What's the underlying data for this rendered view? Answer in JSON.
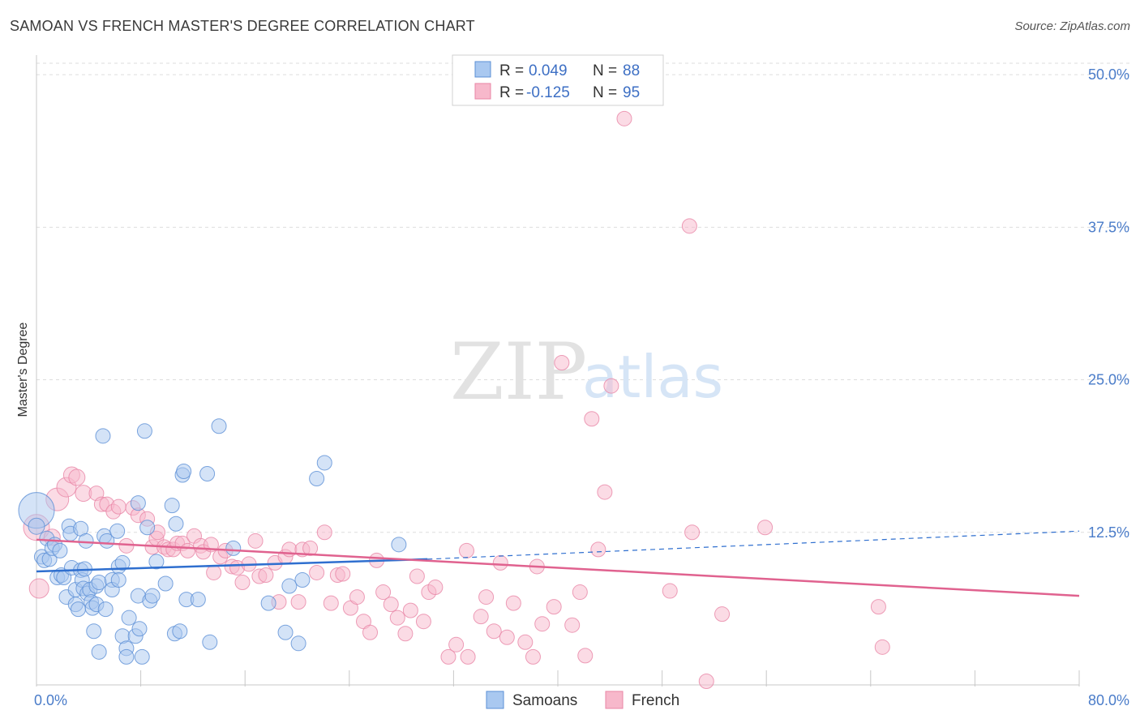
{
  "title": "SAMOAN VS FRENCH MASTER'S DEGREE CORRELATION CHART",
  "source": "Source: ZipAtlas.com",
  "watermark": {
    "zip": "ZIP",
    "atlas": "atlas"
  },
  "legend_top": [
    {
      "r_label": "R =",
      "r_value": "0.049",
      "n_label": "N =",
      "n_value": "88"
    },
    {
      "r_label": "R =",
      "r_value": "-0.125",
      "n_label": "N =",
      "n_value": "95"
    }
  ],
  "colors": {
    "samoans_fill": "#a9c8f0",
    "samoans_stroke": "#5b8fd6",
    "samoans_line": "#2f6fcf",
    "french_fill": "#f7b8cb",
    "french_stroke": "#e986a6",
    "french_line": "#e0628f",
    "grid": "#dddddd",
    "axis_text": "#4a7cc9"
  },
  "chart_data": {
    "type": "scatter",
    "title": "SAMOAN VS FRENCH MASTER'S DEGREE CORRELATION CHART",
    "xlabel": "",
    "ylabel": "Master's Degree",
    "xlim": [
      0,
      80
    ],
    "ylim": [
      0,
      52
    ],
    "x_tick_labels": [
      "0.0%",
      "80.0%"
    ],
    "y_tick_labels": [
      "12.5%",
      "25.0%",
      "37.5%",
      "50.0%"
    ],
    "y_ticks": [
      12.5,
      25.0,
      37.5,
      50.0
    ],
    "grid": true,
    "legend_placement": "top-center",
    "series": [
      {
        "name": "Samoans",
        "r": 0.049,
        "n": 88,
        "trend": {
          "x0": 0,
          "y0": 9.3,
          "x1": 30,
          "y1": 10.3,
          "dashed_to_x": 80,
          "dashed_y1": 12.6
        },
        "points": [
          [
            0.0,
            14.3,
            22
          ],
          [
            0.0,
            13.0,
            10
          ],
          [
            0.4,
            10.5,
            9
          ],
          [
            0.6,
            10.2,
            9
          ],
          [
            0.8,
            12.0,
            9
          ],
          [
            1.0,
            10.3,
            9
          ],
          [
            1.2,
            11.2,
            9
          ],
          [
            1.4,
            11.5,
            9
          ],
          [
            1.6,
            8.8,
            9
          ],
          [
            1.8,
            11.0,
            9
          ],
          [
            1.9,
            9.0,
            9
          ],
          [
            2.1,
            8.8,
            9
          ],
          [
            2.3,
            7.2,
            9
          ],
          [
            2.5,
            13.0,
            9
          ],
          [
            2.6,
            12.4,
            9
          ],
          [
            2.7,
            9.6,
            9
          ],
          [
            3.0,
            6.6,
            9
          ],
          [
            3.0,
            7.8,
            9
          ],
          [
            3.2,
            6.2,
            9
          ],
          [
            3.4,
            12.8,
            9
          ],
          [
            3.4,
            9.4,
            9
          ],
          [
            3.5,
            8.6,
            9
          ],
          [
            3.6,
            7.9,
            9
          ],
          [
            3.7,
            9.5,
            9
          ],
          [
            3.8,
            11.8,
            9
          ],
          [
            3.9,
            7.5,
            9
          ],
          [
            4.1,
            7.8,
            9
          ],
          [
            4.2,
            6.8,
            9
          ],
          [
            4.3,
            6.3,
            9
          ],
          [
            4.4,
            4.4,
            9
          ],
          [
            4.6,
            6.6,
            9
          ],
          [
            4.6,
            8.1,
            9
          ],
          [
            4.8,
            8.4,
            9
          ],
          [
            4.8,
            2.7,
            9
          ],
          [
            5.1,
            20.4,
            9
          ],
          [
            5.2,
            12.2,
            9
          ],
          [
            5.3,
            6.2,
            9
          ],
          [
            5.4,
            11.8,
            9
          ],
          [
            5.8,
            8.6,
            9
          ],
          [
            5.8,
            7.8,
            9
          ],
          [
            6.2,
            12.6,
            9
          ],
          [
            6.3,
            9.7,
            9
          ],
          [
            6.3,
            8.6,
            9
          ],
          [
            6.6,
            10.0,
            9
          ],
          [
            6.6,
            4.0,
            9
          ],
          [
            6.9,
            3.0,
            9
          ],
          [
            6.9,
            2.3,
            9
          ],
          [
            7.1,
            5.5,
            9
          ],
          [
            7.6,
            4.0,
            9
          ],
          [
            7.8,
            14.9,
            9
          ],
          [
            7.8,
            7.3,
            9
          ],
          [
            7.9,
            4.6,
            9
          ],
          [
            8.1,
            2.3,
            9
          ],
          [
            8.3,
            20.8,
            9
          ],
          [
            8.5,
            12.9,
            9
          ],
          [
            8.7,
            6.9,
            9
          ],
          [
            8.9,
            7.3,
            9
          ],
          [
            9.2,
            10.1,
            9
          ],
          [
            9.9,
            8.3,
            9
          ],
          [
            10.4,
            14.7,
            9
          ],
          [
            10.6,
            4.2,
            9
          ],
          [
            10.7,
            13.2,
            9
          ],
          [
            11.0,
            4.4,
            9
          ],
          [
            11.2,
            17.2,
            9
          ],
          [
            11.3,
            17.5,
            9
          ],
          [
            11.5,
            7.0,
            9
          ],
          [
            12.4,
            7.0,
            9
          ],
          [
            13.1,
            17.3,
            9
          ],
          [
            13.3,
            3.5,
            9
          ],
          [
            14.0,
            21.2,
            9
          ],
          [
            15.1,
            11.2,
            9
          ],
          [
            17.8,
            6.7,
            9
          ],
          [
            19.1,
            4.3,
            9
          ],
          [
            19.4,
            8.1,
            9
          ],
          [
            20.1,
            3.4,
            9
          ],
          [
            20.4,
            8.6,
            9
          ],
          [
            21.5,
            16.9,
            9
          ],
          [
            22.1,
            18.2,
            9
          ],
          [
            27.8,
            11.5,
            9
          ]
        ]
      },
      {
        "name": "French",
        "r": -0.125,
        "n": 95,
        "trend": {
          "x0": 0,
          "y0": 11.9,
          "x1": 80,
          "y1": 7.3
        },
        "points": [
          [
            0.0,
            12.9,
            16
          ],
          [
            0.2,
            7.9,
            12
          ],
          [
            1.2,
            12.1,
            10
          ],
          [
            1.6,
            15.2,
            14
          ],
          [
            2.3,
            16.2,
            12
          ],
          [
            2.7,
            17.2,
            10
          ],
          [
            3.1,
            17.0,
            10
          ],
          [
            3.6,
            15.7,
            10
          ],
          [
            4.6,
            15.7,
            9
          ],
          [
            5.0,
            14.8,
            9
          ],
          [
            5.4,
            14.8,
            9
          ],
          [
            5.9,
            14.2,
            9
          ],
          [
            6.3,
            14.6,
            9
          ],
          [
            6.9,
            11.4,
            9
          ],
          [
            7.4,
            14.5,
            9
          ],
          [
            7.8,
            13.9,
            9
          ],
          [
            8.5,
            13.6,
            9
          ],
          [
            8.9,
            11.3,
            9
          ],
          [
            9.2,
            12.0,
            9
          ],
          [
            9.3,
            12.5,
            9
          ],
          [
            9.8,
            11.3,
            9
          ],
          [
            10.1,
            11.1,
            9
          ],
          [
            10.5,
            11.1,
            9
          ],
          [
            10.8,
            11.6,
            9
          ],
          [
            11.2,
            11.6,
            9
          ],
          [
            11.6,
            11.0,
            9
          ],
          [
            12.1,
            12.2,
            9
          ],
          [
            12.6,
            11.4,
            9
          ],
          [
            12.8,
            10.9,
            9
          ],
          [
            13.4,
            11.5,
            9
          ],
          [
            13.6,
            9.2,
            9
          ],
          [
            14.1,
            10.5,
            9
          ],
          [
            14.5,
            11.0,
            9
          ],
          [
            15.0,
            9.7,
            9
          ],
          [
            15.4,
            9.6,
            9
          ],
          [
            15.8,
            8.4,
            9
          ],
          [
            16.3,
            9.9,
            9
          ],
          [
            16.8,
            11.8,
            9
          ],
          [
            17.1,
            8.9,
            9
          ],
          [
            17.6,
            9.0,
            9
          ],
          [
            18.3,
            10.0,
            9
          ],
          [
            18.6,
            6.8,
            9
          ],
          [
            19.1,
            10.5,
            9
          ],
          [
            19.4,
            11.1,
            9
          ],
          [
            20.1,
            6.8,
            9
          ],
          [
            20.4,
            11.1,
            9
          ],
          [
            21.0,
            11.2,
            9
          ],
          [
            21.5,
            9.2,
            9
          ],
          [
            22.1,
            12.5,
            9
          ],
          [
            22.6,
            6.7,
            9
          ],
          [
            23.1,
            9.0,
            9
          ],
          [
            23.5,
            9.1,
            9
          ],
          [
            24.1,
            6.3,
            9
          ],
          [
            24.6,
            7.2,
            9
          ],
          [
            25.1,
            5.2,
            9
          ],
          [
            25.6,
            4.3,
            9
          ],
          [
            26.1,
            10.2,
            9
          ],
          [
            26.6,
            7.6,
            9
          ],
          [
            27.2,
            6.6,
            9
          ],
          [
            27.7,
            5.5,
            9
          ],
          [
            28.3,
            4.2,
            9
          ],
          [
            28.7,
            6.1,
            9
          ],
          [
            29.2,
            8.9,
            9
          ],
          [
            29.7,
            5.2,
            9
          ],
          [
            30.1,
            7.6,
            9
          ],
          [
            30.6,
            8.0,
            9
          ],
          [
            31.6,
            2.3,
            9
          ],
          [
            32.2,
            3.3,
            9
          ],
          [
            33.0,
            11.0,
            9
          ],
          [
            33.1,
            2.3,
            9
          ],
          [
            34.1,
            5.6,
            9
          ],
          [
            34.5,
            7.2,
            9
          ],
          [
            35.1,
            4.4,
            9
          ],
          [
            35.6,
            10.0,
            9
          ],
          [
            36.1,
            3.9,
            9
          ],
          [
            36.6,
            6.7,
            9
          ],
          [
            37.5,
            3.5,
            9
          ],
          [
            38.1,
            2.3,
            9
          ],
          [
            38.4,
            9.7,
            9
          ],
          [
            38.8,
            5.0,
            9
          ],
          [
            39.7,
            6.4,
            9
          ],
          [
            40.3,
            26.4,
            9
          ],
          [
            41.1,
            4.9,
            9
          ],
          [
            41.7,
            7.6,
            9
          ],
          [
            42.1,
            2.4,
            9
          ],
          [
            42.6,
            21.8,
            9
          ],
          [
            43.1,
            11.1,
            9
          ],
          [
            43.6,
            15.8,
            9
          ],
          [
            44.1,
            24.5,
            9
          ],
          [
            45.1,
            46.4,
            9
          ],
          [
            48.6,
            7.7,
            9
          ],
          [
            50.3,
            12.5,
            9
          ],
          [
            50.1,
            37.6,
            9
          ],
          [
            51.4,
            0.3,
            9
          ],
          [
            52.6,
            5.8,
            9
          ],
          [
            55.9,
            12.9,
            9
          ],
          [
            64.6,
            6.4,
            9
          ],
          [
            64.9,
            3.1,
            9
          ]
        ]
      }
    ]
  },
  "bottom_legend": [
    {
      "label": "Samoans"
    },
    {
      "label": "French"
    }
  ]
}
